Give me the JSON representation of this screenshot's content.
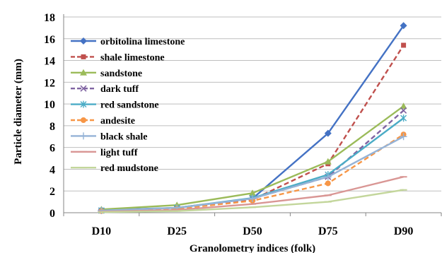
{
  "chart_data": {
    "type": "line",
    "title": "",
    "xlabel": "Granolometry indices (folk)",
    "ylabel": "Particle diameter (mm)",
    "ylim": [
      0,
      18
    ],
    "yticks": [
      0,
      2,
      4,
      6,
      8,
      10,
      12,
      14,
      16,
      18
    ],
    "grid": "horizontal",
    "legend_position": "top-left",
    "categories": [
      "D10",
      "D25",
      "D50",
      "D75",
      "D90"
    ],
    "series": [
      {
        "name": "orbitolina limestone",
        "color": "#4472C4",
        "dash": "solid",
        "marker": "diamond",
        "values": [
          0.25,
          0.45,
          1.3,
          7.3,
          17.2
        ]
      },
      {
        "name": "shale limestone",
        "color": "#C0504D",
        "dash": "dashed",
        "marker": "square",
        "values": [
          0.2,
          0.4,
          1.2,
          4.5,
          15.4
        ]
      },
      {
        "name": "sandstone",
        "color": "#9BBB59",
        "dash": "solid",
        "marker": "triangle",
        "values": [
          0.3,
          0.7,
          1.8,
          4.7,
          9.8
        ]
      },
      {
        "name": "dark tuff",
        "color": "#8064A2",
        "dash": "dashed",
        "marker": "x",
        "values": [
          0.2,
          0.4,
          1.3,
          3.3,
          9.4
        ]
      },
      {
        "name": "red sandstone",
        "color": "#4BACC6",
        "dash": "solid",
        "marker": "star",
        "values": [
          0.2,
          0.45,
          1.35,
          3.5,
          8.7
        ]
      },
      {
        "name": "andesite",
        "color": "#F79646",
        "dash": "dashed",
        "marker": "circle",
        "values": [
          0.15,
          0.35,
          1.1,
          2.7,
          7.2
        ]
      },
      {
        "name": "black shale",
        "color": "#95B3D7",
        "dash": "solid",
        "marker": "plus",
        "values": [
          0.2,
          0.45,
          1.3,
          3.3,
          7.0
        ]
      },
      {
        "name": "light tuff",
        "color": "#D99694",
        "dash": "solid",
        "marker": "dash",
        "values": [
          0.1,
          0.25,
          0.8,
          1.6,
          3.3
        ]
      },
      {
        "name": "red mudstone",
        "color": "#C3D69B",
        "dash": "solid",
        "marker": "dash",
        "values": [
          0.05,
          0.15,
          0.5,
          1.0,
          2.1
        ]
      }
    ]
  }
}
